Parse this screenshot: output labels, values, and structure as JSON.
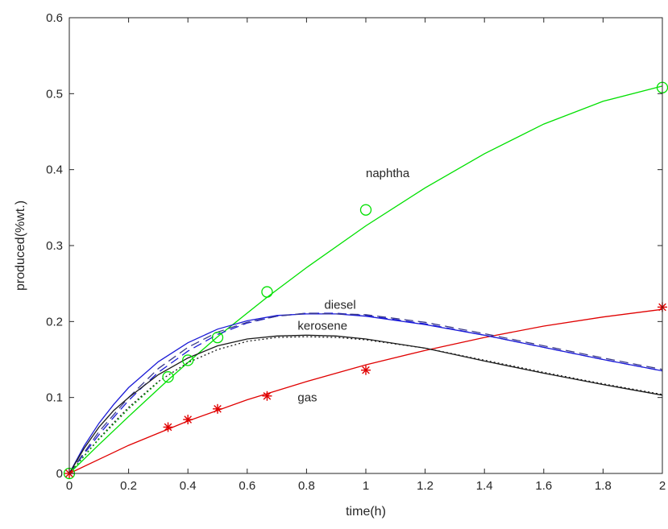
{
  "chart_data": {
    "type": "line",
    "title": "",
    "xlabel": "time(h)",
    "ylabel": "produced(%wt.)",
    "xlim": [
      0,
      2
    ],
    "ylim": [
      0,
      0.6
    ],
    "xticks": [
      0,
      0.2,
      0.4,
      0.6,
      0.8,
      1,
      1.2,
      1.4,
      1.6,
      1.8,
      2
    ],
    "xtick_labels": [
      "0",
      "0.2",
      "0.4",
      "0.6",
      "0.8",
      "1",
      "1.2",
      "1.4",
      "1.6",
      "1.8",
      "2"
    ],
    "yticks": [
      0,
      0.1,
      0.2,
      0.3,
      0.4,
      0.5,
      0.6
    ],
    "ytick_labels": [
      "0",
      "0.1",
      "0.2",
      "0.3",
      "0.4",
      "0.5",
      "0.6"
    ],
    "grid": false,
    "legend": "none",
    "series": [
      {
        "key": "naphtha-model",
        "color": "#00e000",
        "line": "solid",
        "marker": "none",
        "x": [
          0,
          0.1,
          0.2,
          0.333,
          0.4,
          0.5,
          0.667,
          0.8,
          1.0,
          1.2,
          1.4,
          1.6,
          1.8,
          2.0
        ],
        "y": [
          0,
          0.038,
          0.075,
          0.123,
          0.146,
          0.18,
          0.232,
          0.271,
          0.326,
          0.376,
          0.421,
          0.46,
          0.49,
          0.51
        ]
      },
      {
        "key": "naphtha-data",
        "color": "#00e000",
        "line": "none",
        "marker": "circle",
        "x": [
          0,
          0.333,
          0.4,
          0.5,
          0.667,
          1.0,
          2.0
        ],
        "y": [
          0,
          0.127,
          0.149,
          0.179,
          0.239,
          0.347,
          0.508
        ]
      },
      {
        "key": "gas-model",
        "color": "#e00000",
        "line": "solid",
        "marker": "none",
        "x": [
          0,
          0.2,
          0.4,
          0.6,
          0.8,
          1.0,
          1.2,
          1.4,
          1.6,
          1.8,
          2.0
        ],
        "y": [
          0,
          0.037,
          0.069,
          0.097,
          0.121,
          0.143,
          0.162,
          0.179,
          0.194,
          0.206,
          0.216
        ]
      },
      {
        "key": "gas-data",
        "color": "#e00000",
        "line": "none",
        "marker": "asterisk",
        "x": [
          0,
          0.333,
          0.4,
          0.5,
          0.667,
          1.0,
          2.0
        ],
        "y": [
          0,
          0.061,
          0.071,
          0.085,
          0.102,
          0.136,
          0.219
        ]
      },
      {
        "key": "diesel-model",
        "color": "#1a1ad6",
        "line": "solid",
        "marker": "none",
        "x": [
          0,
          0.05,
          0.1,
          0.15,
          0.2,
          0.25,
          0.3,
          0.4,
          0.5,
          0.6,
          0.7,
          0.8,
          0.9,
          1.0,
          1.2,
          1.4,
          1.6,
          1.8,
          2.0
        ],
        "y": [
          0,
          0.036,
          0.066,
          0.091,
          0.113,
          0.13,
          0.147,
          0.172,
          0.19,
          0.201,
          0.208,
          0.21,
          0.21,
          0.207,
          0.196,
          0.182,
          0.166,
          0.15,
          0.135
        ]
      },
      {
        "key": "diesel-alt",
        "color": "#1a1ad6",
        "line": "dashed",
        "marker": "none",
        "x": [
          0,
          0.05,
          0.1,
          0.15,
          0.2,
          0.25,
          0.3,
          0.4,
          0.5,
          0.6,
          0.7,
          0.8,
          0.9,
          1.0,
          1.2,
          1.4,
          1.6,
          1.8,
          2.0
        ],
        "y": [
          0,
          0.026,
          0.051,
          0.074,
          0.096,
          0.115,
          0.133,
          0.161,
          0.183,
          0.198,
          0.207,
          0.211,
          0.211,
          0.208,
          0.197,
          0.182,
          0.166,
          0.15,
          0.135
        ]
      },
      {
        "key": "diesel-alt2",
        "color": "#3a3a8a",
        "line": "dashed",
        "marker": "none",
        "x": [
          0,
          0.1,
          0.2,
          0.3,
          0.4,
          0.5,
          0.6,
          0.7,
          0.8,
          1.0,
          1.2,
          1.4,
          1.6,
          1.8,
          2.0
        ],
        "y": [
          0,
          0.055,
          0.1,
          0.138,
          0.166,
          0.186,
          0.199,
          0.207,
          0.211,
          0.209,
          0.199,
          0.184,
          0.168,
          0.152,
          0.137
        ]
      },
      {
        "key": "kerosene-model",
        "color": "#1a1a1a",
        "line": "solid",
        "marker": "none",
        "x": [
          0,
          0.05,
          0.1,
          0.15,
          0.2,
          0.3,
          0.4,
          0.5,
          0.6,
          0.7,
          0.8,
          0.9,
          1.0,
          1.2,
          1.4,
          1.6,
          1.8,
          2.0
        ],
        "y": [
          0,
          0.033,
          0.061,
          0.083,
          0.1,
          0.13,
          0.152,
          0.168,
          0.177,
          0.181,
          0.182,
          0.181,
          0.177,
          0.165,
          0.148,
          0.132,
          0.117,
          0.103
        ]
      },
      {
        "key": "kerosene-alt",
        "color": "#1a1a1a",
        "line": "dotted",
        "marker": "none",
        "x": [
          0,
          0.05,
          0.1,
          0.15,
          0.2,
          0.3,
          0.4,
          0.5,
          0.6,
          0.7,
          0.8,
          0.9,
          1.0,
          1.2,
          1.4,
          1.6,
          1.8,
          2.0
        ],
        "y": [
          0,
          0.023,
          0.046,
          0.067,
          0.087,
          0.121,
          0.146,
          0.163,
          0.174,
          0.179,
          0.18,
          0.179,
          0.176,
          0.165,
          0.149,
          0.133,
          0.118,
          0.104
        ]
      },
      {
        "key": "kerosene-alt2",
        "color": "#00aa00",
        "line": "dotted",
        "marker": "none",
        "x": [
          0,
          0.1,
          0.2,
          0.3
        ],
        "y": [
          0,
          0.045,
          0.085,
          0.12
        ]
      }
    ],
    "annotations": [
      {
        "text": "naphtha",
        "x": 1.0,
        "y": 0.39
      },
      {
        "text": "diesel",
        "x": 0.86,
        "y": 0.217
      },
      {
        "text": "kerosene",
        "x": 0.77,
        "y": 0.189
      },
      {
        "text": "gas",
        "x": 0.77,
        "y": 0.095
      }
    ]
  }
}
